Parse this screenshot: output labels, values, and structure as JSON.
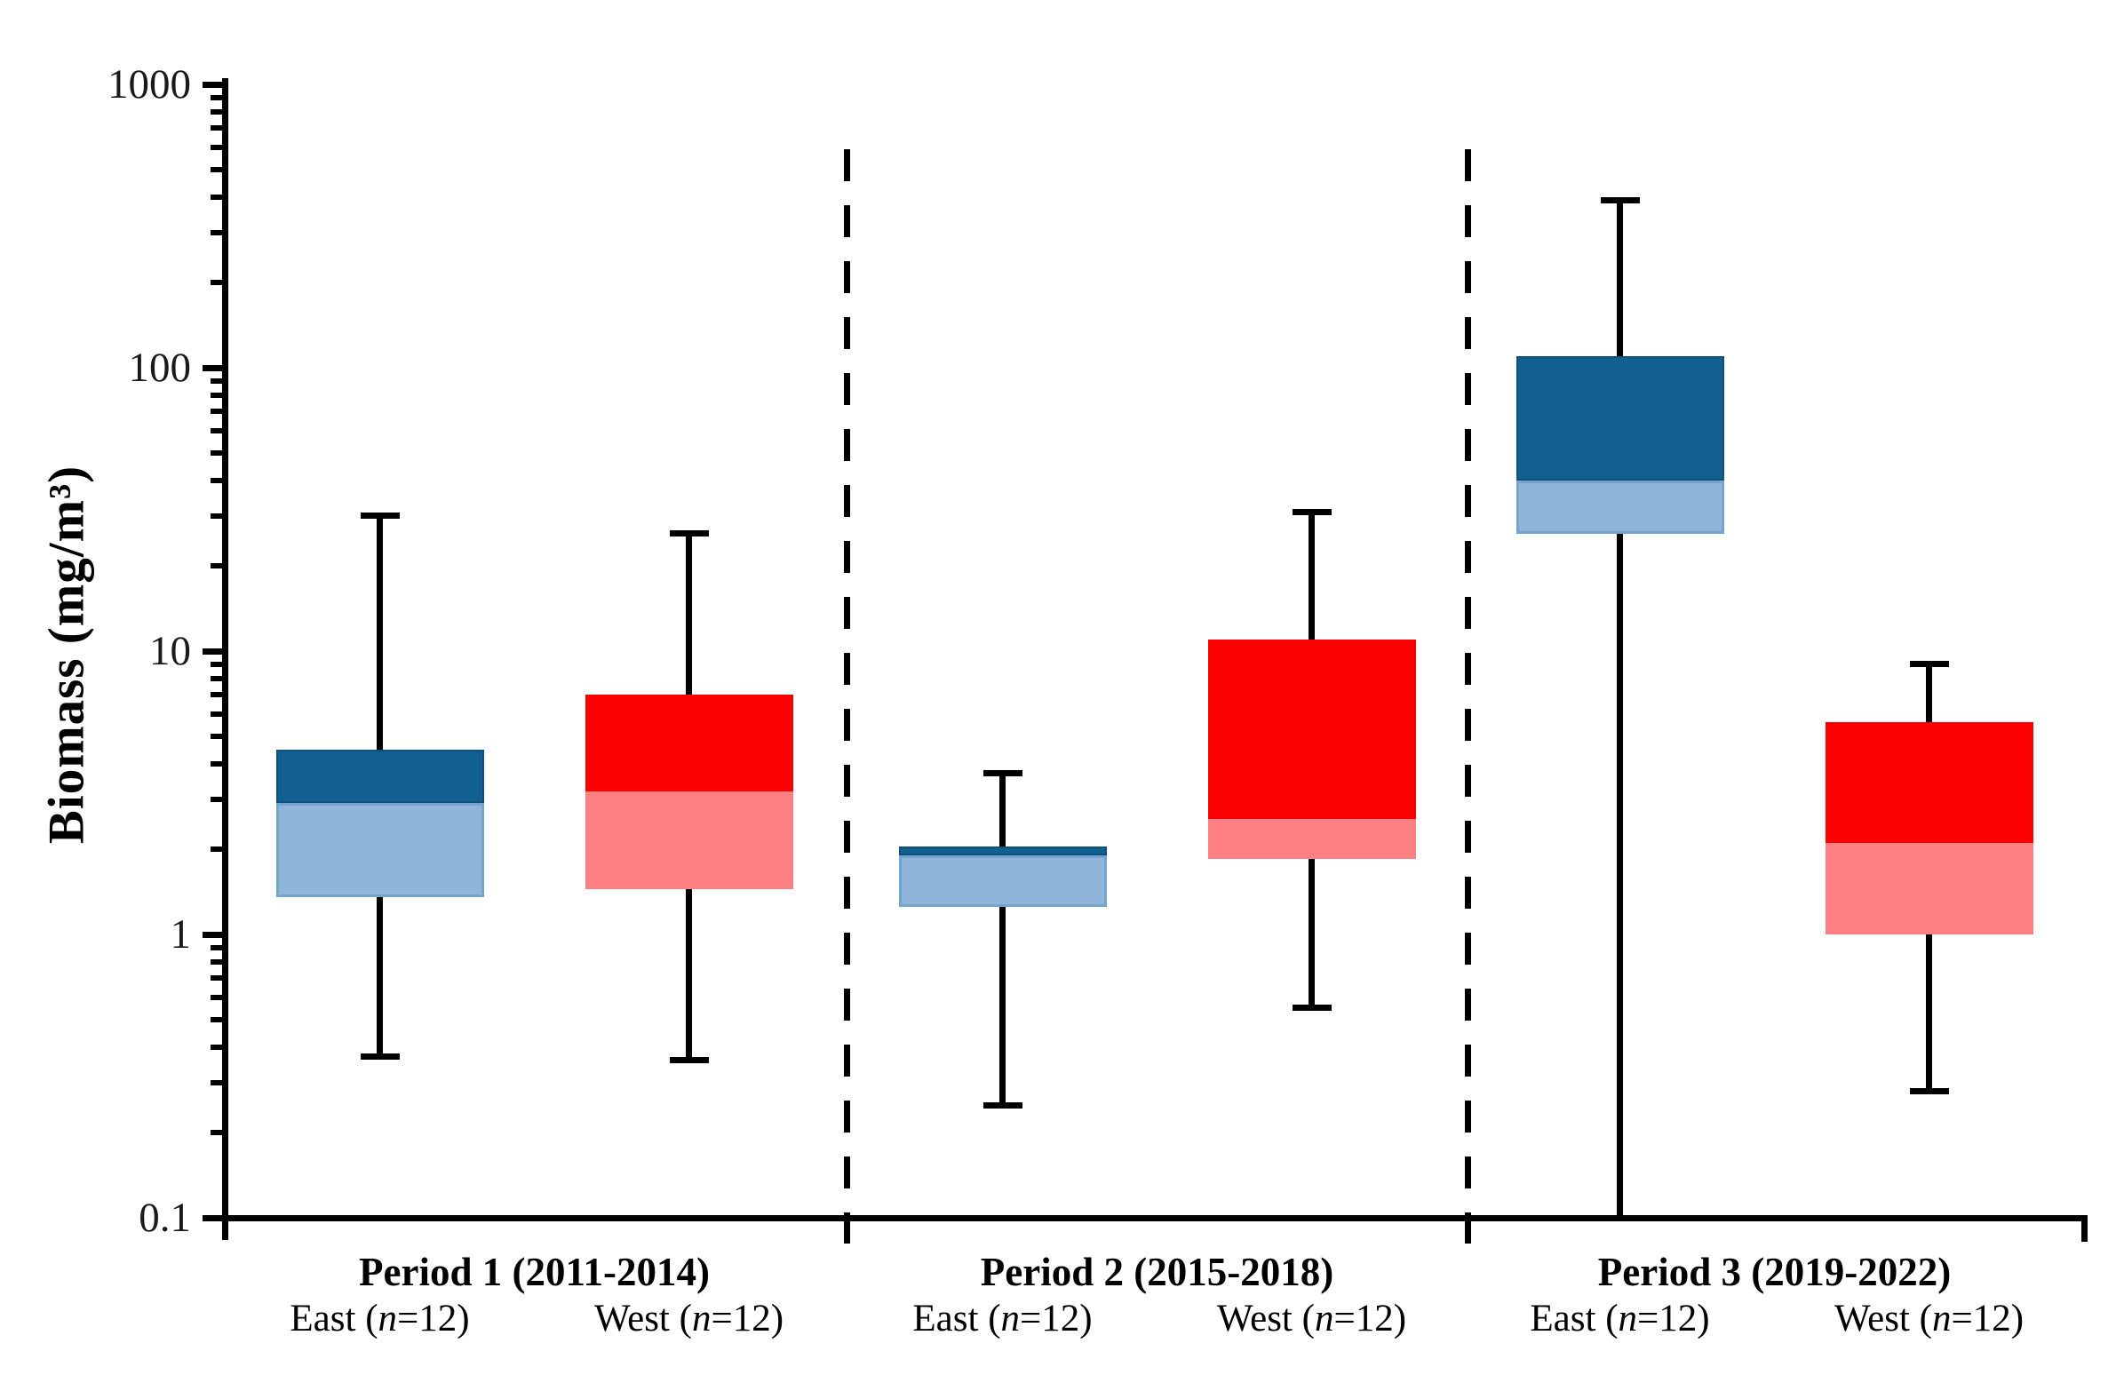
{
  "chart_data": {
    "type": "box",
    "title": "",
    "xlabel": "",
    "ylabel": "Biomass (mg/m³)",
    "y_scale": "log",
    "ylim": [
      0.1,
      1000
    ],
    "y_tick_values": [
      1000,
      100,
      10,
      1,
      0.1
    ],
    "y_tick_labels": [
      "1000",
      "100",
      "10",
      "1",
      "0.1"
    ],
    "grid": false,
    "legend": false,
    "separator_style": "dashed-vertical-lines-between-periods",
    "colors": {
      "east_upper": "#11608f",
      "east_lower": "#8fb5da",
      "east_lower_border": "#74a3cc",
      "east_upper_border": "#0e4f7b",
      "west_upper": "#fb0000",
      "west_lower": "#ff8082",
      "axis": "#000000"
    },
    "periods": [
      {
        "label": "Period 1 (2011-2014)",
        "groups": [
          {
            "region": "East",
            "n": 12,
            "side": "east",
            "box": {
              "min": 0.37,
              "q1": 1.35,
              "median": 2.9,
              "q3": 4.5,
              "max": 30
            },
            "min_cap": true,
            "max_cap": true
          },
          {
            "region": "West",
            "n": 12,
            "side": "west",
            "box": {
              "min": 0.36,
              "q1": 1.45,
              "median": 3.2,
              "q3": 7.0,
              "max": 26
            },
            "min_cap": true,
            "max_cap": true
          }
        ]
      },
      {
        "label": "Period 2 (2015-2018)",
        "groups": [
          {
            "region": "East",
            "n": 12,
            "side": "east",
            "box": {
              "min": 0.25,
              "q1": 1.25,
              "median": 1.9,
              "q3": 2.05,
              "max": 3.7
            },
            "min_cap": true,
            "max_cap": true
          },
          {
            "region": "West",
            "n": 12,
            "side": "west",
            "box": {
              "min": 0.55,
              "q1": 1.85,
              "median": 2.55,
              "q3": 11,
              "max": 31
            },
            "min_cap": true,
            "max_cap": true
          }
        ]
      },
      {
        "label": "Period 3 (2019-2022)",
        "groups": [
          {
            "region": "East",
            "n": 12,
            "side": "east",
            "box": {
              "min": 0.1,
              "q1": 26,
              "median": 40,
              "q3": 110,
              "max": 390
            },
            "min_cap": false,
            "max_cap": true
          },
          {
            "region": "West",
            "n": 12,
            "side": "west",
            "box": {
              "min": 0.28,
              "q1": 1.0,
              "median": 2.1,
              "q3": 5.6,
              "max": 9
            },
            "min_cap": true,
            "max_cap": true
          }
        ]
      }
    ],
    "region_label_format": "Region (n=12)"
  },
  "y_axis": {
    "title": "Biomass (mg/m³)"
  }
}
